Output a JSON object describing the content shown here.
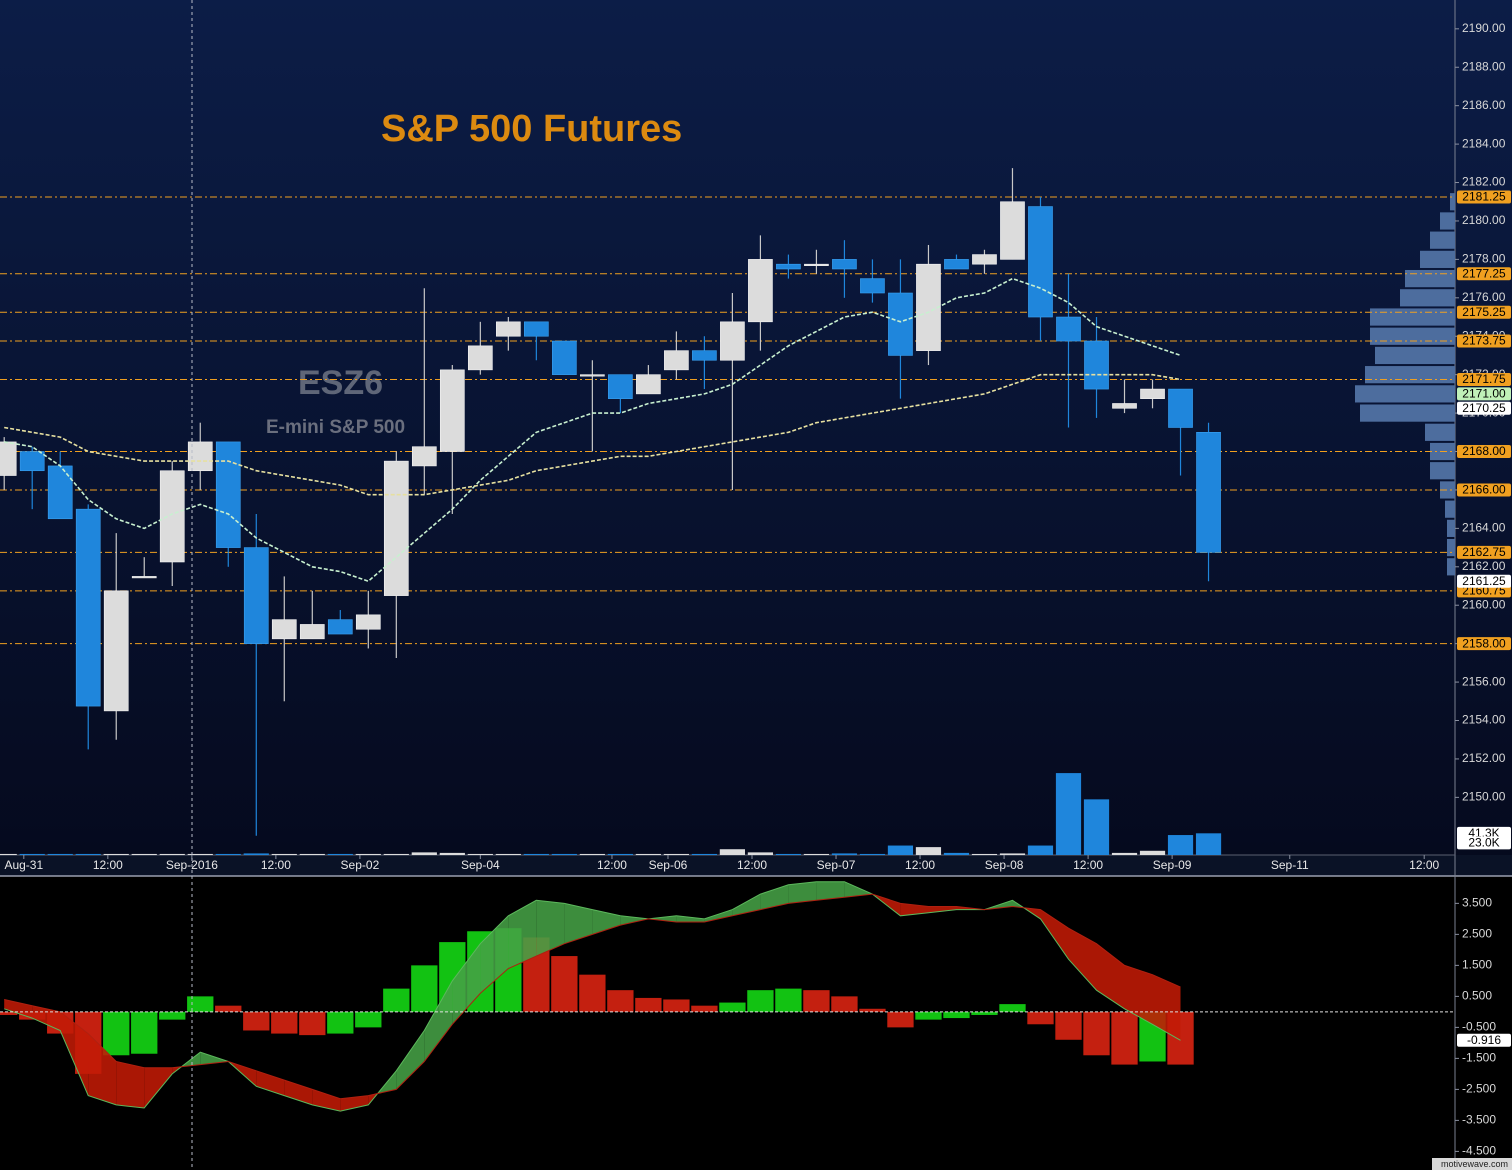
{
  "footer": "motivewave.com",
  "chart_data": [
    {
      "type": "candlestick",
      "title": "S&P 500 Futures",
      "watermark": {
        "symbol": "ESZ6",
        "name": "E-mini S&P 500"
      },
      "categories": [
        null,
        null,
        null,
        null,
        null,
        null,
        null,
        null,
        null,
        null,
        null,
        null,
        null,
        null,
        null,
        null,
        null,
        null,
        null,
        null,
        null,
        null,
        null,
        null,
        null,
        null,
        null,
        null,
        null,
        null,
        null,
        null,
        null,
        null,
        null,
        null,
        null,
        null,
        null,
        null,
        null,
        null,
        null,
        null
      ],
      "open": [
        2166.75,
        2168,
        2167.25,
        2165,
        2154.5,
        2161.5,
        2162.25,
        2167,
        2168.5,
        2163,
        2158.25,
        2158.25,
        2159.25,
        2158.75,
        2160.5,
        2167.25,
        2168,
        2172.25,
        2174,
        2174.75,
        2173.75,
        2172,
        2172,
        2171,
        2172.25,
        2173.25,
        2172.75,
        2174.75,
        2177.75,
        2177.75,
        2178,
        2177,
        2176.25,
        2173.25,
        2178,
        2177.75,
        2178,
        2180.75,
        2175,
        2173.75,
        2170.25,
        2170.75,
        2171.25,
        2169
      ],
      "high": [
        2168.75,
        2168.25,
        2168,
        2165.25,
        2163.75,
        2162.5,
        2167.5,
        2169.5,
        2168.5,
        2164.75,
        2161.5,
        2160.75,
        2159.75,
        2160.75,
        2168,
        2176.5,
        2172.5,
        2174.75,
        2175,
        2174.75,
        2173.75,
        2172.75,
        2172,
        2172.5,
        2174.25,
        2174,
        2176.25,
        2179.25,
        2178.25,
        2178.5,
        2179,
        2178,
        2178,
        2178.75,
        2178.25,
        2178.5,
        2182.75,
        2181.25,
        2177.25,
        2175,
        2171.75,
        2171.75,
        2171.25,
        2169.5
      ],
      "low": [
        2166,
        2165,
        2164.5,
        2152.5,
        2153,
        2161.5,
        2161,
        2166,
        2162,
        2148,
        2155,
        2158.25,
        2158.5,
        2157.75,
        2157.25,
        2165.75,
        2164.75,
        2172,
        2173.25,
        2172.75,
        2172,
        2168,
        2170,
        2171,
        2171.75,
        2171.25,
        2166,
        2173.25,
        2177,
        2177.25,
        2176,
        2175.75,
        2170.75,
        2172.5,
        2177.5,
        2177.25,
        2178,
        2173.75,
        2169.25,
        2169.75,
        2170,
        2170.25,
        2166.75,
        2161.25
      ],
      "close": [
        2168.5,
        2167,
        2164.5,
        2154.75,
        2160.75,
        2161.5,
        2167,
        2168.5,
        2163,
        2158,
        2159.25,
        2159,
        2158.5,
        2159.5,
        2167.5,
        2168.25,
        2172.25,
        2173.5,
        2174.75,
        2174,
        2172,
        2172,
        2170.75,
        2172,
        2173.25,
        2172.75,
        2174.75,
        2178,
        2177.5,
        2177.75,
        2177.5,
        2176.25,
        2173,
        2177.75,
        2177.5,
        2178.25,
        2181,
        2175,
        2173.75,
        2171.25,
        2170.5,
        2171.25,
        2169.25,
        2162.75
      ],
      "up_color": "#dcdcdc",
      "down_color": "#1f86dc",
      "xlim": [
        -0.15,
        51.8
      ],
      "xticks": [
        {
          "value": 0.7,
          "label": "Aug-31"
        },
        {
          "value": 3.7,
          "label": "12:00"
        },
        {
          "value": 6.7,
          "label": "Sep-2016"
        },
        {
          "value": 9.7,
          "label": "12:00"
        },
        {
          "value": 12.7,
          "label": "Sep-02"
        },
        {
          "value": 17,
          "label": "Sep-04"
        },
        {
          "value": 21.7,
          "label": "12:00"
        },
        {
          "value": 23.7,
          "label": "Sep-06"
        },
        {
          "value": 26.7,
          "label": "12:00"
        },
        {
          "value": 29.7,
          "label": "Sep-07"
        },
        {
          "value": 32.7,
          "label": "12:00"
        },
        {
          "value": 35.7,
          "label": "Sep-08"
        },
        {
          "value": 38.7,
          "label": "12:00"
        },
        {
          "value": 41.7,
          "label": "Sep-09"
        },
        {
          "value": 45.9,
          "label": "Sep-11"
        },
        {
          "value": 50.7,
          "label": "12:00"
        }
      ],
      "ylim": [
        2147,
        2191.5
      ],
      "yticks": [
        {
          "value": 2150,
          "label": "2150.00"
        },
        {
          "value": 2152,
          "label": "2152.00"
        },
        {
          "value": 2154,
          "label": "2154.00"
        },
        {
          "value": 2156,
          "label": "2156.00"
        },
        {
          "value": 2158,
          "label": "2158.00"
        },
        {
          "value": 2160,
          "label": "2160.00"
        },
        {
          "value": 2162,
          "label": "2162.00"
        },
        {
          "value": 2164,
          "label": "2164.00"
        },
        {
          "value": 2166,
          "label": "2166.00"
        },
        {
          "value": 2168,
          "label": "2168.00"
        },
        {
          "value": 2170,
          "label": "2170.00"
        },
        {
          "value": 2172,
          "label": "2172.00"
        },
        {
          "value": 2174,
          "label": "2174.00"
        },
        {
          "value": 2176,
          "label": "2176.00"
        },
        {
          "value": 2178,
          "label": "2178.00"
        },
        {
          "value": 2180,
          "label": "2180.00"
        },
        {
          "value": 2182,
          "label": "2182.00"
        },
        {
          "value": 2184,
          "label": "2184.00"
        },
        {
          "value": 2186,
          "label": "2186.00"
        },
        {
          "value": 2188,
          "label": "2188.00"
        },
        {
          "value": 2190,
          "label": "2190.00"
        }
      ],
      "moving_averages": [
        {
          "color": "#c8f0d0",
          "values": [
            2168.5,
            2168.25,
            2167.25,
            2165.5,
            2164.5,
            2164,
            2164.75,
            2165.25,
            2164.75,
            2163.5,
            2162.75,
            2162,
            2161.75,
            2161.25,
            2162.5,
            2163.75,
            2165,
            2166.5,
            2167.75,
            2169,
            2169.5,
            2170,
            2170,
            2170.5,
            2170.75,
            2171,
            2171.5,
            2172.5,
            2173.5,
            2174.25,
            2175,
            2175.25,
            2174.75,
            2175.25,
            2176,
            2176.25,
            2177,
            2176.5,
            2175.75,
            2174.5,
            2174,
            2173.5,
            2173,
            null
          ]
        },
        {
          "color": "#e6e0a0",
          "values": [
            2169.25,
            2169,
            2168.75,
            2168,
            2167.75,
            2167.5,
            2167.5,
            2167.5,
            2167.5,
            2167,
            2166.75,
            2166.5,
            2166.25,
            2165.75,
            2165.75,
            2165.75,
            2166,
            2166.25,
            2166.5,
            2167,
            2167.25,
            2167.5,
            2167.75,
            2167.75,
            2168,
            2168.25,
            2168.5,
            2168.75,
            2169,
            2169.5,
            2169.75,
            2170,
            2170.25,
            2170.5,
            2170.75,
            2171,
            2171.5,
            2172,
            2172,
            2172,
            2172,
            2172,
            2171.75,
            null
          ]
        }
      ],
      "level_color": "#f0a020",
      "levels": [
        {
          "value": 2181.25,
          "label": "2181.25"
        },
        {
          "value": 2177.25,
          "label": "2177.25"
        },
        {
          "value": 2175.25,
          "label": "2175.25"
        },
        {
          "value": 2173.75,
          "label": "2173.75"
        },
        {
          "value": 2171.75,
          "label": "2171.75"
        },
        {
          "value": 2168,
          "label": "2168.00"
        },
        {
          "value": 2166,
          "label": "2166.00"
        },
        {
          "value": 2162.75,
          "label": "2162.75"
        },
        {
          "value": 2160.75,
          "label": "2160.75"
        },
        {
          "value": 2158,
          "label": "2158.00"
        }
      ],
      "price_tags": [
        {
          "value": 2171,
          "label": "2171.00",
          "color": "#c0f0b8"
        },
        {
          "value": 2170.25,
          "label": "2170.25",
          "color": "#ffffff"
        },
        {
          "value": 2161.25,
          "label": "2161.25",
          "color": "#ffffff"
        }
      ],
      "volume": {
        "values": [
          2,
          2,
          2,
          2,
          2,
          2,
          2,
          2,
          2,
          3,
          2,
          2,
          2,
          2,
          2,
          5,
          4,
          2,
          2,
          2,
          2,
          2,
          2,
          2,
          2,
          2,
          11,
          5,
          2,
          2,
          3,
          2,
          18,
          15,
          4,
          2,
          3,
          18,
          156,
          106,
          4,
          8,
          38,
          41.3
        ],
        "ylim": [
          0,
          200
        ],
        "tags": [
          {
            "value": 41.3,
            "label": "41.3K"
          },
          {
            "value": 23.0,
            "label": "23.0K"
          }
        ]
      },
      "volume_profile": {
        "color": "#4d6d9e",
        "xlim": [
          0,
          100
        ],
        "prices": [
          2162,
          2163,
          2164,
          2165,
          2166,
          2167,
          2168,
          2169,
          2170,
          2171,
          2172,
          2173,
          2174,
          2175,
          2176,
          2177,
          2178,
          2179,
          2180,
          2181
        ],
        "values": [
          8,
          8,
          8,
          10,
          15,
          25,
          25,
          30,
          95,
          100,
          90,
          80,
          85,
          85,
          55,
          50,
          35,
          25,
          15,
          5
        ]
      }
    },
    {
      "type": "oscillator",
      "histogram": [
        -0.1,
        -0.25,
        -0.7,
        -2.0,
        -1.4,
        -1.35,
        -0.25,
        0.5,
        0.2,
        -0.6,
        -0.7,
        -0.75,
        -0.7,
        -0.5,
        0.75,
        1.5,
        2.25,
        2.6,
        2.7,
        2.4,
        1.8,
        1.2,
        0.7,
        0.45,
        0.4,
        0.2,
        0.3,
        0.7,
        0.75,
        0.7,
        0.5,
        0.1,
        -0.5,
        -0.25,
        -0.2,
        -0.1,
        0.25,
        -0.4,
        -0.9,
        -1.4,
        -1.7,
        -1.6,
        -1.7,
        null
      ],
      "up_color": "#12c212",
      "down_color": "#c42010",
      "lines": [
        {
          "color": "#5cb85c",
          "values": [
            0.1,
            -0.2,
            -0.6,
            -2.7,
            -3.0,
            -3.1,
            -2.0,
            -1.3,
            -1.6,
            -2.4,
            -2.7,
            -3.0,
            -3.2,
            -3.0,
            -1.9,
            -0.6,
            1.0,
            2.2,
            3.1,
            3.6,
            3.5,
            3.3,
            3.1,
            3.0,
            3.1,
            3.0,
            3.3,
            3.8,
            4.1,
            4.2,
            4.2,
            3.8,
            3.1,
            3.2,
            3.3,
            3.3,
            3.6,
            3.0,
            1.7,
            0.7,
            0.1,
            -0.4,
            -0.916,
            null
          ]
        },
        {
          "color": "#b02010",
          "values": [
            0.4,
            0.2,
            0.0,
            -0.7,
            -1.6,
            -1.8,
            -1.8,
            -1.7,
            -1.6,
            -1.9,
            -2.2,
            -2.5,
            -2.8,
            -2.7,
            -2.5,
            -1.6,
            -0.4,
            0.6,
            1.4,
            1.8,
            2.2,
            2.5,
            2.8,
            3.0,
            2.9,
            2.9,
            3.1,
            3.3,
            3.5,
            3.6,
            3.7,
            3.8,
            3.5,
            3.4,
            3.4,
            3.3,
            3.4,
            3.3,
            2.7,
            2.2,
            1.5,
            1.2,
            0.8,
            null
          ]
        }
      ],
      "area_up_color": "#46a046",
      "area_down_color": "#c21a06",
      "last_value": -0.916,
      "ylim": [
        -5.1,
        4.35
      ],
      "yticks": [
        {
          "value": 3.5,
          "label": "3.500"
        },
        {
          "value": 2.5,
          "label": "2.500"
        },
        {
          "value": 1.5,
          "label": "1.500"
        },
        {
          "value": 0.5,
          "label": "0.500"
        },
        {
          "value": -0.5,
          "label": "-0.500"
        },
        {
          "value": -1.5,
          "label": "-1.500"
        },
        {
          "value": -2.5,
          "label": "-2.500"
        },
        {
          "value": -3.5,
          "label": "-3.500"
        },
        {
          "value": -4.5,
          "label": "-4.500"
        }
      ]
    }
  ]
}
